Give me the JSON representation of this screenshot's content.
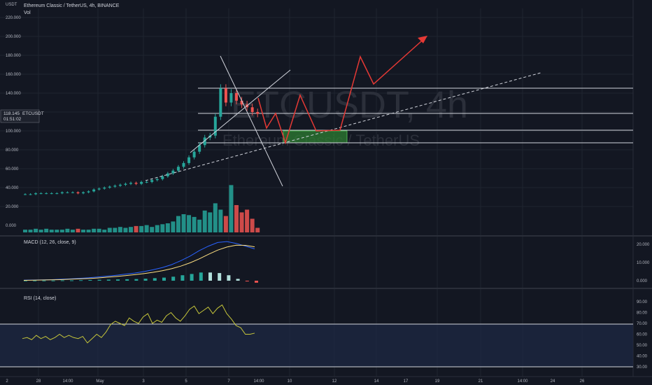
{
  "header": {
    "symbol_title": "Ethereum Classic / TetherUS, 4h, BINANCE",
    "vol_label": "Vol",
    "currency": "USDT"
  },
  "watermark": {
    "line1": "ETCUSDT, 4h",
    "line2": "Ethereum Classic / TetherUS"
  },
  "price_tag": {
    "value": "118.145",
    "symbol": "ETCUSDT",
    "countdown": "01:51:02"
  },
  "colors": {
    "background": "#131722",
    "up": "#26a69a",
    "down": "#ef5350",
    "macd_line": "#2962ff",
    "signal_line": "#ffe082",
    "rsi_line": "#c6c63a",
    "forecast": "#e53935",
    "target_zone": "#2e7d32"
  },
  "chart_data": [
    {
      "type": "candlestick",
      "title": "Ethereum Classic / TetherUS, 4h, BINANCE",
      "ylabel": "USDT",
      "ylim": [
        -8,
        226
      ],
      "y_ticks": [
        "220.000",
        "200.000",
        "180.000",
        "160.000",
        "140.000",
        "120.000",
        "100.000",
        "80.000",
        "60.000",
        "40.000",
        "20.000",
        "0.000"
      ],
      "last_price": 118.145,
      "series": [
        {
          "name": "price_close_approx",
          "values": [
            33,
            33,
            34,
            34,
            34,
            34,
            34,
            35,
            35,
            35,
            34,
            35,
            36,
            38,
            39,
            40,
            41,
            42,
            43,
            44,
            45,
            44,
            46,
            46,
            48,
            49,
            52,
            55,
            58,
            62,
            66,
            72,
            78,
            85,
            93,
            95,
            115,
            145,
            130,
            140,
            132,
            128,
            125,
            120,
            118
          ]
        },
        {
          "name": "volume_approx",
          "values": [
            3,
            3,
            4,
            3,
            4,
            3,
            3,
            3,
            4,
            3,
            4,
            3,
            3,
            4,
            4,
            3,
            5,
            5,
            6,
            5,
            6,
            7,
            7,
            8,
            6,
            8,
            9,
            10,
            12,
            18,
            20,
            19,
            17,
            14,
            24,
            22,
            32,
            25,
            18,
            52,
            30,
            22,
            25,
            15,
            5
          ]
        }
      ],
      "horizontal_levels": [
        144.5,
        118,
        99,
        86
      ],
      "target_zone": {
        "from": 86,
        "to": 99
      },
      "volume_ticks": [
        "20.000",
        "0.000"
      ]
    },
    {
      "type": "line",
      "title": "MACD (12, 26, close, 9)",
      "y_ticks": [
        "20.000",
        "10.000",
        "0.000"
      ],
      "ylim": [
        -4,
        23
      ],
      "series": [
        {
          "name": "MACD",
          "values": [
            0.3,
            0.4,
            0.5,
            0.6,
            0.8,
            1.0,
            1.3,
            1.6,
            2.0,
            2.5,
            3.0,
            3.6,
            4.2,
            5.0,
            6.0,
            7.2,
            8.8,
            11,
            13.5,
            16.5,
            19,
            21,
            21.5,
            20.5,
            19,
            17.5
          ]
        },
        {
          "name": "Signal",
          "values": [
            0.2,
            0.3,
            0.4,
            0.5,
            0.6,
            0.8,
            1.0,
            1.2,
            1.5,
            1.9,
            2.3,
            2.8,
            3.3,
            3.9,
            4.6,
            5.5,
            6.6,
            8.0,
            9.8,
            12,
            14.5,
            16.8,
            18.5,
            19.5,
            19.4,
            18.6
          ]
        }
      ],
      "histogram": [
        0.1,
        0.1,
        0.1,
        0.1,
        0.2,
        0.2,
        0.3,
        0.4,
        0.5,
        0.6,
        0.7,
        0.8,
        0.9,
        1.1,
        1.4,
        1.7,
        2.2,
        3,
        3.7,
        4.5,
        4.5,
        4.2,
        3,
        1,
        -0.4,
        -1.1
      ]
    },
    {
      "type": "line",
      "title": "RSI (14, close)",
      "y_ticks": [
        "90.00",
        "80.00",
        "70.00",
        "60.00",
        "50.00",
        "40.00",
        "30.00"
      ],
      "ylim": [
        26,
        96
      ],
      "bands": [
        30,
        70
      ],
      "series": [
        {
          "name": "RSI",
          "values": [
            56,
            57,
            55,
            59,
            56,
            58,
            55,
            57,
            60,
            57,
            59,
            57,
            56,
            58,
            52,
            56,
            60,
            57,
            62,
            69,
            72,
            70,
            68,
            75,
            72,
            70,
            76,
            79,
            70,
            73,
            71,
            77,
            80,
            75,
            72,
            77,
            83,
            86,
            79,
            82,
            85,
            79,
            84,
            87,
            79,
            74,
            68,
            66,
            60,
            60,
            61
          ]
        }
      ]
    }
  ],
  "x_axis": {
    "ticks": [
      "2",
      "28",
      "14:00",
      "May",
      "3",
      "5",
      "7",
      "14:00",
      "10",
      "12",
      "14",
      "17",
      "19",
      "21",
      "14:00",
      "24",
      "26"
    ]
  }
}
